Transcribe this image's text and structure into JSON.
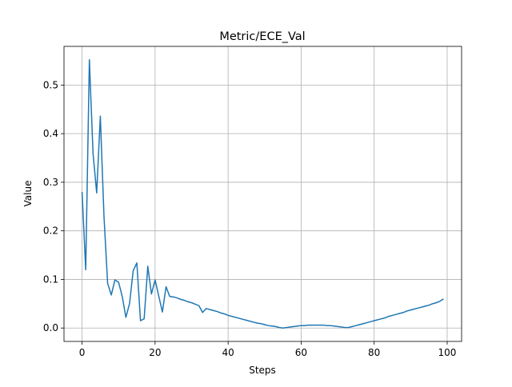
{
  "chart_data": {
    "type": "line",
    "title": "Metric/ECE_Val",
    "x_label": "Steps",
    "y_label": "Value",
    "x": [
      0,
      1,
      2,
      3,
      4,
      5,
      6,
      7,
      8,
      9,
      10,
      11,
      12,
      13,
      14,
      15,
      16,
      17,
      18,
      19,
      20,
      21,
      22,
      23,
      24,
      25,
      26,
      27,
      28,
      29,
      30,
      31,
      32,
      33,
      34,
      35,
      36,
      37,
      38,
      39,
      40,
      41,
      42,
      43,
      44,
      45,
      46,
      47,
      48,
      49,
      50,
      51,
      52,
      53,
      54,
      55,
      56,
      57,
      58,
      59,
      60,
      61,
      62,
      63,
      64,
      65,
      66,
      67,
      68,
      69,
      70,
      71,
      72,
      73,
      74,
      75,
      76,
      77,
      78,
      79,
      80,
      81,
      82,
      83,
      84,
      85,
      86,
      87,
      88,
      89,
      90,
      91,
      92,
      93,
      94,
      95,
      96,
      97,
      98,
      99
    ],
    "values": [
      0.28,
      0.12,
      0.552,
      0.36,
      0.278,
      0.436,
      0.23,
      0.092,
      0.068,
      0.099,
      0.094,
      0.065,
      0.022,
      0.05,
      0.118,
      0.134,
      0.015,
      0.019,
      0.127,
      0.07,
      0.099,
      0.066,
      0.033,
      0.085,
      0.065,
      0.064,
      0.062,
      0.059,
      0.057,
      0.054,
      0.052,
      0.049,
      0.046,
      0.032,
      0.04,
      0.038,
      0.036,
      0.034,
      0.031,
      0.029,
      0.026,
      0.024,
      0.022,
      0.02,
      0.018,
      0.016,
      0.014,
      0.012,
      0.01,
      0.009,
      0.007,
      0.005,
      0.004,
      0.003,
      0.001,
      0.0,
      0.001,
      0.002,
      0.003,
      0.004,
      0.005,
      0.005,
      0.006,
      0.006,
      0.006,
      0.006,
      0.006,
      0.005,
      0.005,
      0.004,
      0.003,
      0.002,
      0.001,
      0.001,
      0.003,
      0.005,
      0.007,
      0.009,
      0.011,
      0.013,
      0.015,
      0.017,
      0.019,
      0.021,
      0.024,
      0.026,
      0.028,
      0.03,
      0.032,
      0.035,
      0.037,
      0.039,
      0.041,
      0.043,
      0.045,
      0.047,
      0.05,
      0.052,
      0.055,
      0.06
    ],
    "color": "#1f77b4",
    "xlim": [
      -4.95,
      103.95
    ],
    "ylim": [
      -0.0276,
      0.5796
    ],
    "xticks": [
      0,
      20,
      40,
      60,
      80,
      100
    ],
    "yticks": [
      {
        "value": 0,
        "label": "0.0"
      },
      0.1,
      0.2,
      0.3,
      0.4,
      0.5
    ],
    "grid": true
  }
}
